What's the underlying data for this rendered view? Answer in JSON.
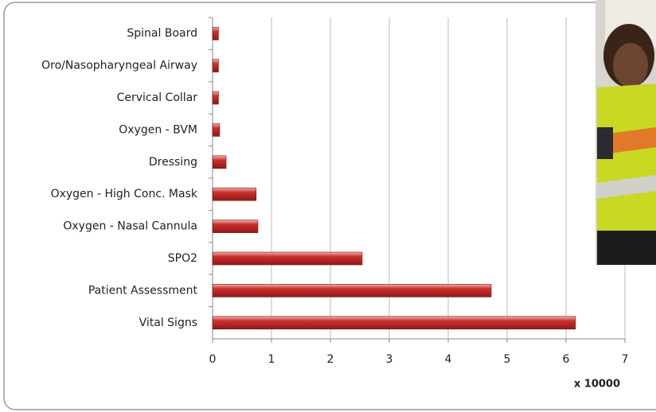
{
  "chart_data": {
    "type": "bar",
    "orientation": "horizontal",
    "categories": [
      "Spinal Board",
      "Oro/Nasopharyngeal Airway",
      "Cervical Collar",
      "Oxygen - BVM",
      "Dressing",
      "Oxygen - High Conc. Mask",
      "Oxygen - Nasal Cannula",
      "SPO2",
      "Patient Assessment",
      "Vital Signs"
    ],
    "values": [
      0.1,
      0.1,
      0.1,
      0.12,
      0.23,
      0.74,
      0.77,
      2.54,
      4.73,
      6.16
    ],
    "color": "#c9302c",
    "xlabel": "x 10000",
    "xlim": [
      0,
      7
    ],
    "xticks": [
      0,
      1,
      2,
      3,
      4,
      5,
      6,
      7
    ],
    "grid": true
  }
}
